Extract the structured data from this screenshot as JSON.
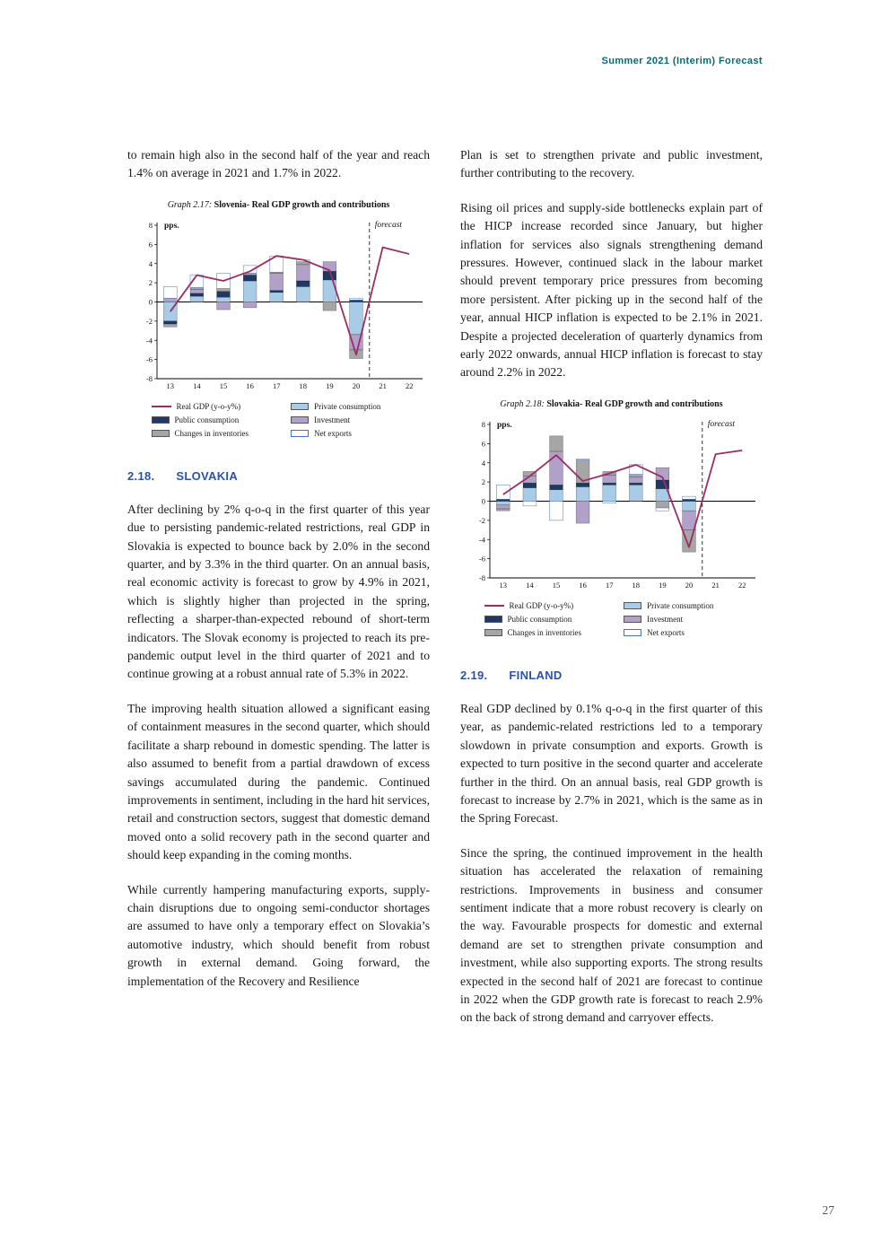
{
  "page": {
    "header": "Summer 2021 (Interim) Forecast",
    "page_number": "27"
  },
  "left_column": {
    "carryover_paragraph": "to remain high also in the second half of the year and reach 1.4% on average in 2021 and 1.7% in 2022.",
    "section_number": "2.18.",
    "section_title": "SLOVAKIA",
    "paragraphs": [
      "After declining by 2% q-o-q in the first quarter of this year due to persisting pandemic-related restrictions, real GDP in Slovakia is expected to bounce back by 2.0% in the second quarter, and by 3.3% in the third quarter. On an annual basis, real economic activity is forecast to grow by 4.9% in 2021, which is slightly higher than projected in the spring, reflecting a sharper-than-expected rebound of short-term indicators. The Slovak economy is projected to reach its pre-pandemic output level in the third quarter of 2021 and to continue growing at a robust annual rate of 5.3% in 2022.",
      "The improving health situation allowed a significant easing of containment measures in the second quarter, which should facilitate a sharp rebound in domestic spending. The latter is also assumed to benefit from a partial drawdown of excess savings accumulated during the pandemic. Continued improvements in sentiment, including in the hard hit services, retail and construction sectors, suggest that domestic demand moved onto a solid recovery path in the second quarter and should keep expanding in the coming months.",
      "While currently hampering manufacturing exports, supply-chain disruptions due to ongoing semi-conductor shortages are assumed to have only a temporary effect on Slovakia’s automotive industry, which should benefit from robust growth in external demand. Going forward, the implementation of the Recovery and Resilience"
    ]
  },
  "right_column": {
    "carryover_paragraph": "Plan is set to strengthen private and public investment, further contributing to the recovery.",
    "inflation_paragraph": "Rising oil prices and supply-side bottlenecks explain part of the HICP increase recorded since January, but higher inflation for services also signals strengthening demand pressures. However, continued slack in the labour market should prevent temporary price pressures from becoming more persistent. After picking up in the second half of the year, annual HICP inflation is expected to be 2.1% in 2021. Despite a projected deceleration of quarterly dynamics from early 2022 onwards, annual HICP inflation is forecast to stay around 2.2% in 2022.",
    "section_number": "2.19.",
    "section_title": "FINLAND",
    "paragraphs": [
      "Real GDP declined by 0.1% q-o-q in the first quarter of this year, as pandemic-related restrictions led to a temporary slowdown in private consumption and exports. Growth is expected to turn positive in the second quarter and accelerate further in the third. On an annual basis, real GDP growth is forecast to increase by 2.7% in 2021, which is the same as in the Spring Forecast.",
      "Since the spring, the continued improvement in the health situation has accelerated the relaxation of remaining restrictions. Improvements in business and consumer sentiment indicate that a more robust recovery is clearly on the way. Favourable prospects for domestic and external demand are set to strengthen private consumption and investment, while also supporting exports. The strong results expected in the second half of 2021 are forecast to continue in 2022 when the GDP growth rate is forecast to reach 2.9% on the back of strong demand and carryover effects."
    ]
  },
  "chart_data": [
    {
      "type": "bar",
      "caption_prefix": "Graph 2.17:",
      "caption_title": "Slovenia- Real GDP growth and contributions",
      "title": "Slovenia- Real GDP growth and contributions",
      "unit_label": "pps.",
      "forecast_label": "forecast",
      "xlabel": "",
      "ylabel": "pps.",
      "ylim": [
        -8,
        8
      ],
      "ytick_step": 2,
      "categories": [
        "13",
        "14",
        "15",
        "16",
        "17",
        "18",
        "19",
        "20",
        "21",
        "22"
      ],
      "forecast_start_index": 8,
      "line_series": {
        "name": "Real GDP (y-o-y%)",
        "color": "#9B2D64",
        "values": [
          -1.0,
          2.8,
          2.2,
          3.2,
          4.8,
          4.4,
          3.3,
          -5.5,
          5.7,
          5.0
        ]
      },
      "bar_series": [
        {
          "name": "Private consumption",
          "color": "#A8CBE8",
          "values": [
            -2.0,
            0.6,
            0.5,
            2.2,
            1.0,
            1.6,
            2.3,
            -3.4,
            null,
            null
          ]
        },
        {
          "name": "Public consumption",
          "color": "#1F3864",
          "values": [
            -0.3,
            0.3,
            0.6,
            0.6,
            0.2,
            0.6,
            0.9,
            0.2,
            null,
            null
          ]
        },
        {
          "name": "Investment",
          "color": "#B1A0C7",
          "values": [
            0.4,
            0.4,
            -0.8,
            -0.6,
            1.8,
            1.7,
            1.0,
            -1.6,
            null,
            null
          ]
        },
        {
          "name": "Changes in inventories",
          "color": "#A6A6A6",
          "values": [
            -0.3,
            0.2,
            0.3,
            0.2,
            0.1,
            0.3,
            -0.9,
            -0.9,
            null,
            null
          ]
        },
        {
          "name": "Net exports",
          "color": "#FFFFFF",
          "border": "#4472C4",
          "values": [
            1.2,
            1.3,
            1.6,
            0.8,
            1.7,
            0.2,
            0.0,
            0.2,
            null,
            null
          ]
        }
      ],
      "legend": [
        {
          "label": "Real GDP (y-o-y%)",
          "type": "line",
          "color": "#9B2D64"
        },
        {
          "label": "Private consumption",
          "type": "box",
          "color": "#A8CBE8"
        },
        {
          "label": "Public consumption",
          "type": "box",
          "color": "#1F3864"
        },
        {
          "label": "Investment",
          "type": "box",
          "color": "#B1A0C7"
        },
        {
          "label": "Changes in inventories",
          "type": "box",
          "color": "#A6A6A6"
        },
        {
          "label": "Net exports",
          "type": "box",
          "color": "#FFFFFF",
          "border": "#4472C4"
        }
      ]
    },
    {
      "type": "bar",
      "caption_prefix": "Graph 2.18:",
      "caption_title": "Slovakia- Real GDP growth and contributions",
      "title": "Slovakia- Real GDP growth and contributions",
      "unit_label": "pps.",
      "forecast_label": "forecast",
      "xlabel": "",
      "ylabel": "pps.",
      "ylim": [
        -8,
        8
      ],
      "ytick_step": 2,
      "categories": [
        "13",
        "14",
        "15",
        "16",
        "17",
        "18",
        "19",
        "20",
        "21",
        "22"
      ],
      "forecast_start_index": 8,
      "line_series": {
        "name": "Real GDP (y-o-y%)",
        "color": "#9B2D64",
        "values": [
          0.7,
          2.6,
          4.8,
          2.1,
          2.9,
          3.8,
          2.5,
          -4.8,
          4.9,
          5.3
        ]
      },
      "bar_series": [
        {
          "name": "Private consumption",
          "color": "#A8CBE8",
          "values": [
            -0.4,
            1.4,
            1.2,
            1.5,
            1.7,
            1.7,
            1.3,
            -1.0,
            null,
            null
          ]
        },
        {
          "name": "Public consumption",
          "color": "#1F3864",
          "values": [
            0.2,
            0.5,
            0.5,
            0.4,
            0.2,
            0.2,
            0.9,
            0.2,
            null,
            null
          ]
        },
        {
          "name": "Investment",
          "color": "#B1A0C7",
          "values": [
            -0.4,
            0.7,
            3.5,
            -2.3,
            0.8,
            0.6,
            1.3,
            -2.0,
            null,
            null
          ]
        },
        {
          "name": "Changes in inventories",
          "color": "#A6A6A6",
          "values": [
            -0.2,
            0.5,
            1.6,
            2.4,
            0.4,
            0.3,
            -0.7,
            -2.3,
            null,
            null
          ]
        },
        {
          "name": "Net exports",
          "color": "#FFFFFF",
          "border": "#4472C4",
          "values": [
            1.5,
            -0.5,
            -2.0,
            0.1,
            -0.2,
            1.0,
            -0.3,
            0.3,
            null,
            null
          ]
        }
      ],
      "legend": [
        {
          "label": "Real GDP (y-o-y%)",
          "type": "line",
          "color": "#9B2D64"
        },
        {
          "label": "Private consumption",
          "type": "box",
          "color": "#A8CBE8"
        },
        {
          "label": "Public consumption",
          "type": "box",
          "color": "#1F3864"
        },
        {
          "label": "Investment",
          "type": "box",
          "color": "#B1A0C7"
        },
        {
          "label": "Changes in inventories",
          "type": "box",
          "color": "#A6A6A6"
        },
        {
          "label": "Net exports",
          "type": "box",
          "color": "#FFFFFF",
          "border": "#4472C4"
        }
      ]
    }
  ]
}
